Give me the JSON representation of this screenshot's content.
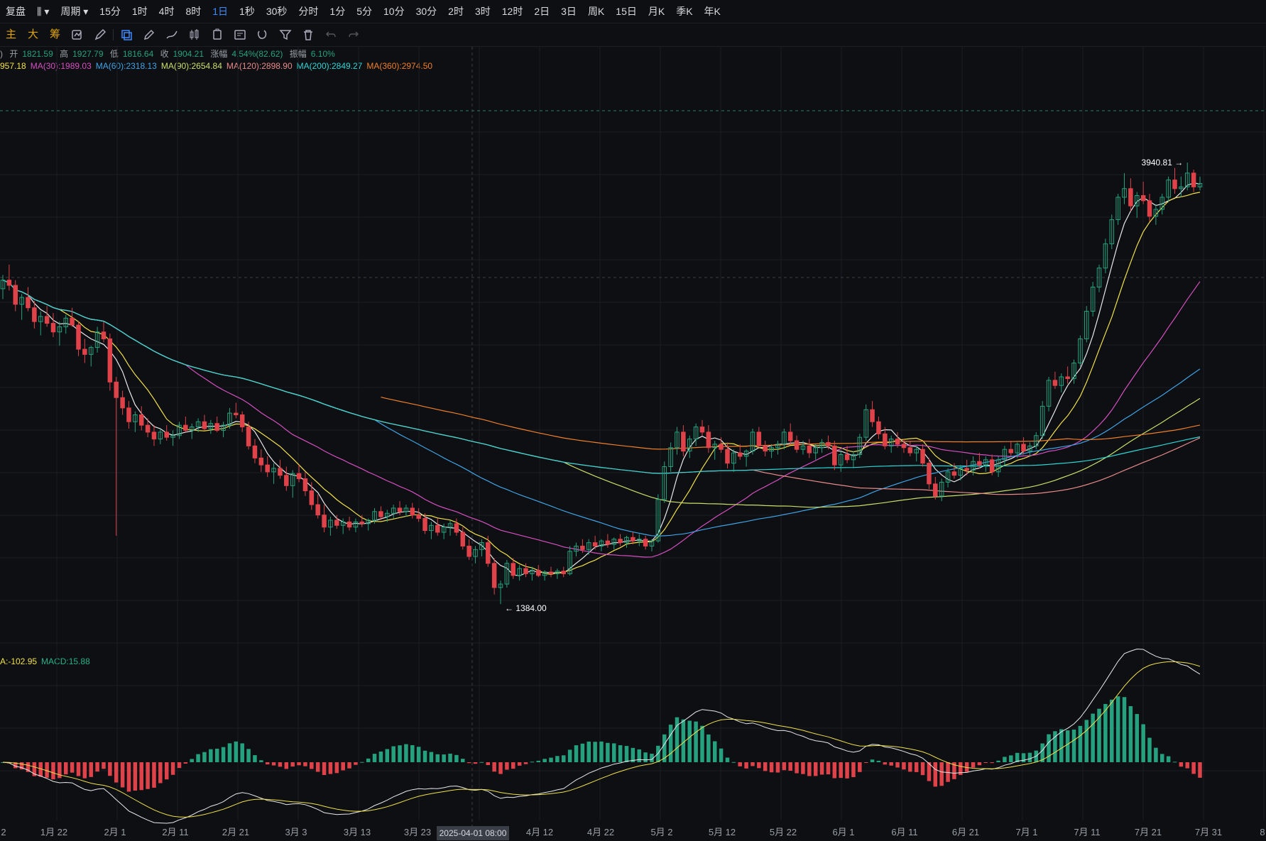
{
  "topbar": {
    "items": [
      "复盘",
      "周期",
      "15分",
      "1时",
      "4时",
      "8时",
      "1日",
      "1秒",
      "30秒",
      "分时",
      "1分",
      "5分",
      "10分",
      "30分",
      "2时",
      "3时",
      "12时",
      "2日",
      "3日",
      "周K",
      "15日",
      "月K",
      "季K",
      "年K"
    ],
    "active": "1日"
  },
  "toolbar2": {
    "labels": [
      "主",
      "大",
      "筹"
    ]
  },
  "ohlc": {
    "open_label": "开",
    "open": "1821.59",
    "high_label": "高",
    "high": "1927.79",
    "low_label": "低",
    "low": "1816.64",
    "close_label": "收",
    "close": "1904.21",
    "change_label": "涨幅",
    "change": "4.54%(82.62)",
    "amp_label": "振幅",
    "amp": "6.10%"
  },
  "ma_legend": [
    {
      "text": "957.18",
      "color": "#f2e14a"
    },
    {
      "text": "MA(30):1989.03",
      "color": "#d64fc0"
    },
    {
      "text": "MA(60):2318.13",
      "color": "#3fa3e6"
    },
    {
      "text": "MA(90):2654.84",
      "color": "#c8e06a"
    },
    {
      "text": "MA(120):2898.90",
      "color": "#e88a8a"
    },
    {
      "text": "MA(200):2849.27",
      "color": "#2fd6d6"
    },
    {
      "text": "MA(360):2974.50",
      "color": "#f07f2a"
    }
  ],
  "macd_legend": [
    {
      "text": "A:-102.95",
      "color": "#f2e14a"
    },
    {
      "text": "MACD:15.88",
      "color": "#26b28a"
    }
  ],
  "colors": {
    "up": "#26a17f",
    "down": "#e0424a",
    "bg": "#0d0f12",
    "grid": "#1a1e24"
  },
  "chart_data": {
    "type": "candlestick",
    "max_label": "3940.81",
    "min_label": "1384.00",
    "x_tick_labels": [
      "2",
      "1月 22",
      "2月 1",
      "2月 11",
      "2月 21",
      "3月 3",
      "3月 13",
      "3月 23",
      "4月 12",
      "4月 22",
      "5月 2",
      "5月 12",
      "5月 22",
      "6月 1",
      "6月 11",
      "6月 21",
      "7月 1",
      "7月 11",
      "7月 21",
      "7月 31",
      "8"
    ],
    "crosshair_label": "2025-04-01 08:00",
    "ylim": [
      1200,
      4200
    ],
    "candles": [
      [
        3210,
        3290,
        3150,
        3260
      ],
      [
        3260,
        3350,
        3200,
        3230
      ],
      [
        3230,
        3260,
        3080,
        3120
      ],
      [
        3120,
        3180,
        3030,
        3160
      ],
      [
        3160,
        3220,
        3080,
        3100
      ],
      [
        3100,
        3140,
        2980,
        3020
      ],
      [
        3020,
        3080,
        2940,
        3050
      ],
      [
        3050,
        3110,
        2990,
        3010
      ],
      [
        3010,
        3070,
        2930,
        2960
      ],
      [
        2960,
        3020,
        2880,
        2990
      ],
      [
        2990,
        3060,
        2950,
        3040
      ],
      [
        3040,
        3100,
        2990,
        3000
      ],
      [
        3000,
        3020,
        2820,
        2860
      ],
      [
        2860,
        2920,
        2780,
        2830
      ],
      [
        2830,
        2880,
        2760,
        2870
      ],
      [
        2870,
        2990,
        2840,
        2960
      ],
      [
        2960,
        3020,
        2900,
        2920
      ],
      [
        2920,
        2950,
        2620,
        2670
      ],
      [
        2670,
        2700,
        1780,
        2580
      ],
      [
        2580,
        2620,
        2480,
        2520
      ],
      [
        2520,
        2560,
        2400,
        2440
      ],
      [
        2440,
        2500,
        2380,
        2480
      ],
      [
        2480,
        2530,
        2390,
        2420
      ],
      [
        2420,
        2460,
        2350,
        2380
      ],
      [
        2380,
        2420,
        2300,
        2340
      ],
      [
        2340,
        2400,
        2310,
        2380
      ],
      [
        2380,
        2420,
        2330,
        2350
      ],
      [
        2350,
        2390,
        2300,
        2360
      ],
      [
        2360,
        2440,
        2340,
        2420
      ],
      [
        2420,
        2470,
        2380,
        2390
      ],
      [
        2390,
        2430,
        2340,
        2410
      ],
      [
        2410,
        2460,
        2380,
        2440
      ],
      [
        2440,
        2480,
        2390,
        2400
      ],
      [
        2400,
        2450,
        2370,
        2430
      ],
      [
        2430,
        2470,
        2380,
        2390
      ],
      [
        2390,
        2440,
        2350,
        2420
      ],
      [
        2420,
        2520,
        2400,
        2490
      ],
      [
        2490,
        2550,
        2460,
        2480
      ],
      [
        2480,
        2500,
        2380,
        2410
      ],
      [
        2410,
        2440,
        2280,
        2300
      ],
      [
        2300,
        2340,
        2200,
        2230
      ],
      [
        2230,
        2280,
        2150,
        2190
      ],
      [
        2190,
        2240,
        2120,
        2150
      ],
      [
        2150,
        2200,
        2080,
        2170
      ],
      [
        2170,
        2220,
        2110,
        2130
      ],
      [
        2130,
        2180,
        2040,
        2070
      ],
      [
        2070,
        2160,
        2000,
        2140
      ],
      [
        2140,
        2190,
        2090,
        2110
      ],
      [
        2110,
        2150,
        2010,
        2040
      ],
      [
        2040,
        2090,
        1930,
        1960
      ],
      [
        1960,
        2020,
        1880,
        1900
      ],
      [
        1900,
        1960,
        1800,
        1830
      ],
      [
        1830,
        1890,
        1780,
        1870
      ],
      [
        1870,
        1900,
        1820,
        1840
      ],
      [
        1840,
        1880,
        1790,
        1860
      ],
      [
        1860,
        1890,
        1810,
        1830
      ],
      [
        1830,
        1880,
        1800,
        1860
      ],
      [
        1860,
        1900,
        1830,
        1850
      ],
      [
        1850,
        1880,
        1810,
        1870
      ],
      [
        1870,
        1940,
        1850,
        1920
      ],
      [
        1920,
        1950,
        1870,
        1890
      ],
      [
        1890,
        1930,
        1860,
        1910
      ],
      [
        1910,
        1960,
        1880,
        1940
      ],
      [
        1940,
        1980,
        1900,
        1920
      ],
      [
        1920,
        1960,
        1890,
        1940
      ],
      [
        1940,
        1970,
        1880,
        1900
      ],
      [
        1900,
        1940,
        1860,
        1880
      ],
      [
        1880,
        1910,
        1790,
        1810
      ],
      [
        1810,
        1860,
        1760,
        1840
      ],
      [
        1840,
        1880,
        1780,
        1800
      ],
      [
        1800,
        1850,
        1760,
        1830
      ],
      [
        1830,
        1870,
        1780,
        1850
      ],
      [
        1850,
        1880,
        1780,
        1800
      ],
      [
        1800,
        1830,
        1700,
        1720
      ],
      [
        1720,
        1760,
        1640,
        1660
      ],
      [
        1660,
        1720,
        1620,
        1700
      ],
      [
        1700,
        1760,
        1660,
        1740
      ],
      [
        1740,
        1780,
        1600,
        1620
      ],
      [
        1620,
        1650,
        1440,
        1480
      ],
      [
        1480,
        1520,
        1384,
        1500
      ],
      [
        1500,
        1640,
        1480,
        1620
      ],
      [
        1620,
        1650,
        1530,
        1550
      ],
      [
        1550,
        1610,
        1520,
        1590
      ],
      [
        1590,
        1620,
        1540,
        1560
      ],
      [
        1560,
        1600,
        1520,
        1580
      ],
      [
        1580,
        1610,
        1540,
        1550
      ],
      [
        1550,
        1580,
        1520,
        1570
      ],
      [
        1570,
        1600,
        1540,
        1560
      ],
      [
        1560,
        1590,
        1530,
        1575
      ],
      [
        1575,
        1600,
        1540,
        1560
      ],
      [
        1560,
        1720,
        1550,
        1690
      ],
      [
        1690,
        1740,
        1660,
        1720
      ],
      [
        1720,
        1760,
        1680,
        1700
      ],
      [
        1700,
        1760,
        1670,
        1740
      ],
      [
        1740,
        1780,
        1700,
        1720
      ],
      [
        1720,
        1760,
        1690,
        1750
      ],
      [
        1750,
        1790,
        1710,
        1730
      ],
      [
        1730,
        1770,
        1700,
        1760
      ],
      [
        1760,
        1790,
        1720,
        1740
      ],
      [
        1740,
        1780,
        1710,
        1770
      ],
      [
        1770,
        1800,
        1730,
        1750
      ],
      [
        1750,
        1790,
        1720,
        1760
      ],
      [
        1760,
        1780,
        1700,
        1720
      ],
      [
        1720,
        1760,
        1690,
        1750
      ],
      [
        1750,
        2020,
        1740,
        1990
      ],
      [
        1990,
        2210,
        1970,
        2180
      ],
      [
        2180,
        2320,
        2150,
        2290
      ],
      [
        2290,
        2410,
        2250,
        2380
      ],
      [
        2380,
        2420,
        2240,
        2270
      ],
      [
        2270,
        2360,
        2230,
        2340
      ],
      [
        2340,
        2430,
        2300,
        2410
      ],
      [
        2410,
        2450,
        2360,
        2380
      ],
      [
        2380,
        2420,
        2260,
        2290
      ],
      [
        2290,
        2330,
        2220,
        2310
      ],
      [
        2310,
        2350,
        2260,
        2280
      ],
      [
        2280,
        2320,
        2170,
        2200
      ],
      [
        2200,
        2280,
        2150,
        2260
      ],
      [
        2260,
        2310,
        2220,
        2240
      ],
      [
        2240,
        2280,
        2180,
        2270
      ],
      [
        2270,
        2400,
        2250,
        2380
      ],
      [
        2380,
        2410,
        2290,
        2300
      ],
      [
        2300,
        2330,
        2240,
        2270
      ],
      [
        2270,
        2310,
        2230,
        2290
      ],
      [
        2290,
        2330,
        2250,
        2310
      ],
      [
        2310,
        2400,
        2280,
        2380
      ],
      [
        2380,
        2430,
        2310,
        2330
      ],
      [
        2330,
        2360,
        2260,
        2280
      ],
      [
        2280,
        2330,
        2250,
        2300
      ],
      [
        2300,
        2340,
        2230,
        2260
      ],
      [
        2260,
        2310,
        2220,
        2290
      ],
      [
        2290,
        2340,
        2260,
        2320
      ],
      [
        2320,
        2360,
        2280,
        2300
      ],
      [
        2300,
        2330,
        2160,
        2190
      ],
      [
        2190,
        2270,
        2150,
        2250
      ],
      [
        2250,
        2300,
        2200,
        2220
      ],
      [
        2220,
        2270,
        2170,
        2250
      ],
      [
        2250,
        2370,
        2230,
        2350
      ],
      [
        2350,
        2540,
        2330,
        2510
      ],
      [
        2510,
        2560,
        2410,
        2440
      ],
      [
        2440,
        2470,
        2340,
        2370
      ],
      [
        2370,
        2410,
        2280,
        2300
      ],
      [
        2300,
        2360,
        2260,
        2340
      ],
      [
        2340,
        2380,
        2290,
        2310
      ],
      [
        2310,
        2340,
        2260,
        2290
      ],
      [
        2290,
        2330,
        2240,
        2260
      ],
      [
        2260,
        2300,
        2210,
        2280
      ],
      [
        2280,
        2310,
        2180,
        2200
      ],
      [
        2200,
        2230,
        2050,
        2080
      ],
      [
        2080,
        2120,
        1990,
        2010
      ],
      [
        2010,
        2110,
        1980,
        2090
      ],
      [
        2090,
        2170,
        2060,
        2150
      ],
      [
        2150,
        2200,
        2110,
        2130
      ],
      [
        2130,
        2190,
        2100,
        2170
      ],
      [
        2170,
        2220,
        2130,
        2160
      ],
      [
        2160,
        2240,
        2130,
        2210
      ],
      [
        2210,
        2260,
        2170,
        2190
      ],
      [
        2190,
        2240,
        2150,
        2220
      ],
      [
        2220,
        2250,
        2130,
        2150
      ],
      [
        2150,
        2240,
        2120,
        2220
      ],
      [
        2220,
        2300,
        2190,
        2280
      ],
      [
        2280,
        2330,
        2240,
        2260
      ],
      [
        2260,
        2320,
        2230,
        2310
      ],
      [
        2310,
        2350,
        2250,
        2270
      ],
      [
        2270,
        2320,
        2240,
        2300
      ],
      [
        2300,
        2380,
        2280,
        2360
      ],
      [
        2360,
        2560,
        2340,
        2530
      ],
      [
        2530,
        2700,
        2500,
        2680
      ],
      [
        2680,
        2730,
        2630,
        2650
      ],
      [
        2650,
        2720,
        2610,
        2700
      ],
      [
        2700,
        2760,
        2660,
        2690
      ],
      [
        2690,
        2800,
        2660,
        2780
      ],
      [
        2780,
        2940,
        2760,
        2920
      ],
      [
        2920,
        3110,
        2900,
        3080
      ],
      [
        3080,
        3250,
        3050,
        3220
      ],
      [
        3220,
        3350,
        3190,
        3330
      ],
      [
        3330,
        3500,
        3300,
        3470
      ],
      [
        3470,
        3640,
        3440,
        3610
      ],
      [
        3610,
        3760,
        3580,
        3740
      ],
      [
        3740,
        3880,
        3700,
        3790
      ],
      [
        3790,
        3850,
        3660,
        3690
      ],
      [
        3690,
        3770,
        3620,
        3750
      ],
      [
        3750,
        3830,
        3700,
        3720
      ],
      [
        3720,
        3760,
        3600,
        3630
      ],
      [
        3630,
        3700,
        3580,
        3670
      ],
      [
        3670,
        3760,
        3640,
        3740
      ],
      [
        3740,
        3860,
        3710,
        3840
      ],
      [
        3840,
        3910,
        3760,
        3790
      ],
      [
        3790,
        3860,
        3740,
        3800
      ],
      [
        3800,
        3940.81,
        3780,
        3880
      ],
      [
        3880,
        3900,
        3770,
        3800
      ],
      [
        3800,
        3860,
        3780,
        3820
      ]
    ]
  }
}
